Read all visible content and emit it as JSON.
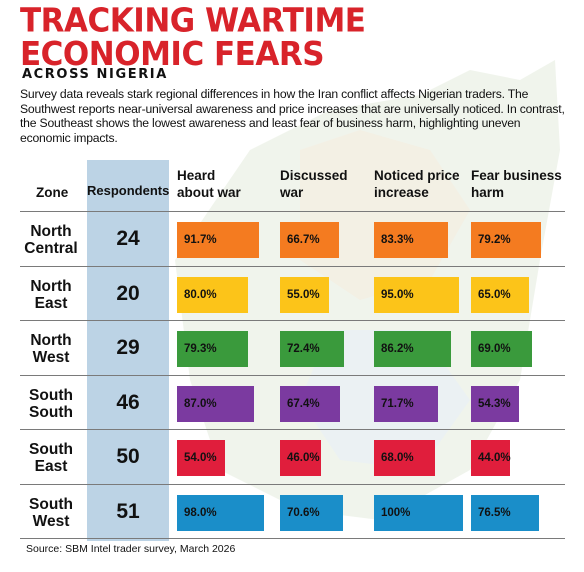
{
  "title_line1": "TRACKING WARTIME",
  "title_line2": "ECONOMIC FEARS",
  "subtitle": "ACROSS NIGERIA",
  "intro": "Survey data reveals stark regional differences in how the Iran conflict affects Nigerian traders. The Southwest reports near-universal awareness and price increases that are universally noticed. In contrast, the Southeast shows the lowest awareness and least fear of business harm, highlighting uneven economic impacts.",
  "source": "Source: SBM Intel trader survey, March 2026",
  "colors": {
    "title": "#d8232a",
    "respondents_column": "#bcd3e5",
    "North Central": "#f47b20",
    "North East": "#fcc419",
    "North West": "#3a9a3c",
    "South South": "#7b3aa0",
    "South East": "#e01e3c",
    "South West": "#1a8ec9"
  },
  "chart_data": {
    "type": "table",
    "headers": {
      "zone": "Zone",
      "respondents": "Respondents",
      "heard_line1": "Heard",
      "heard_line2": "about war",
      "discussed_line1": "Discussed",
      "discussed_line2": "war",
      "price_line1": "Noticed price",
      "price_line2": "increase",
      "fear_line1": "Fear business",
      "fear_line2": "harm"
    },
    "metrics": [
      "Heard about war",
      "Discussed war",
      "Noticed price increase",
      "Fear business harm"
    ],
    "rows": [
      {
        "zone_line1": "North",
        "zone_line2": "Central",
        "zone": "North Central",
        "respondents": "24",
        "labels": [
          "91.7%",
          "66.7%",
          "83.3%",
          "79.2%"
        ],
        "values": [
          91.7,
          66.7,
          83.3,
          79.2
        ]
      },
      {
        "zone_line1": "North",
        "zone_line2": "East",
        "zone": "North East",
        "respondents": "20",
        "labels": [
          "80.0%",
          "55.0%",
          "95.0%",
          "65.0%"
        ],
        "values": [
          80.0,
          55.0,
          95.0,
          65.0
        ]
      },
      {
        "zone_line1": "North",
        "zone_line2": "West",
        "zone": "North West",
        "respondents": "29",
        "labels": [
          "79.3%",
          "72.4%",
          "86.2%",
          "69.0%"
        ],
        "values": [
          79.3,
          72.4,
          86.2,
          69.0
        ]
      },
      {
        "zone_line1": "South",
        "zone_line2": "South",
        "zone": "South South",
        "respondents": "46",
        "labels": [
          "87.0%",
          "67.4%",
          "71.7%",
          "54.3%"
        ],
        "values": [
          87.0,
          67.4,
          71.7,
          54.3
        ]
      },
      {
        "zone_line1": "South",
        "zone_line2": "East",
        "zone": "South East",
        "respondents": "50",
        "labels": [
          "54.0%",
          "46.0%",
          "68.0%",
          "44.0%"
        ],
        "values": [
          54.0,
          46.0,
          68.0,
          44.0
        ]
      },
      {
        "zone_line1": "South",
        "zone_line2": "West",
        "zone": "South West",
        "respondents": "51",
        "labels": [
          "98.0%",
          "70.6%",
          "100%",
          "76.5%"
        ],
        "values": [
          98.0,
          70.6,
          100,
          76.5
        ]
      }
    ]
  }
}
